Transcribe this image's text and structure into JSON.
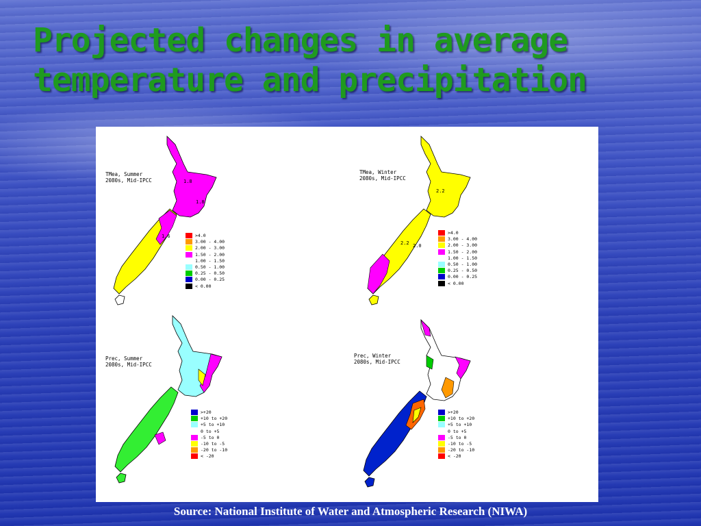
{
  "slide": {
    "title_line1": "Projected changes in average",
    "title_line2": "temperature and precipitation",
    "source": "Source: National Institute of Water and Atmospheric Research (NIWA)"
  },
  "panels": [
    {
      "label_line1": "TMea, Summer",
      "label_line2": "2080s, Mid-IPCC",
      "north_fill": "#ff00ff",
      "south_fill": "#ffffff",
      "legend": [
        {
          "text": ">4.0",
          "color": "#ff0000"
        },
        {
          "text": "3.00 - 4.00",
          "color": "#ff9900"
        },
        {
          "text": "2.00 - 3.00",
          "color": "#ffff00"
        },
        {
          "text": "1.50 - 2.00",
          "color": "#ff00ff"
        },
        {
          "text": "1.00 - 1.50",
          "color": "#ffffff"
        },
        {
          "text": "0.50 - 1.00",
          "color": "#99ffff"
        },
        {
          "text": "0.25 - 0.50",
          "color": "#00cc00"
        },
        {
          "text": "0.00 - 0.25",
          "color": "#0000cc"
        },
        {
          "text": "< 0.00",
          "color": "#000000"
        }
      ]
    },
    {
      "label_line1": "TMea, Winter",
      "label_line2": "2080s, Mid-IPCC",
      "north_fill": "#ffff00",
      "south_fill": "#ffff00",
      "legend": [
        {
          "text": ">4.0",
          "color": "#ff0000"
        },
        {
          "text": "3.00 - 4.00",
          "color": "#ff9900"
        },
        {
          "text": "2.00 - 3.00",
          "color": "#ffff00"
        },
        {
          "text": "1.50 - 2.00",
          "color": "#ff00ff"
        },
        {
          "text": "1.00 - 1.50",
          "color": "#ffffff"
        },
        {
          "text": "0.50 - 1.00",
          "color": "#99ffff"
        },
        {
          "text": "0.25 - 0.50",
          "color": "#00cc00"
        },
        {
          "text": "0.00 - 0.25",
          "color": "#0000cc"
        },
        {
          "text": "< 0.00",
          "color": "#000000"
        }
      ]
    },
    {
      "label_line1": "Prec, Summer",
      "label_line2": "2080s, Mid-IPCC",
      "north_fill": "#99ffff",
      "south_fill": "#33ee33",
      "legend": [
        {
          "text": ">+20",
          "color": "#0000cc"
        },
        {
          "text": "+10 to +20",
          "color": "#00cc00"
        },
        {
          "text": "+5 to +10",
          "color": "#99ffff"
        },
        {
          "text": "0 to +5",
          "color": "#ffffff"
        },
        {
          "text": "-5 to 0",
          "color": "#ff00ff"
        },
        {
          "text": "-10 to -5",
          "color": "#ffff00"
        },
        {
          "text": "-20 to -10",
          "color": "#ff9900"
        },
        {
          "text": "< -20",
          "color": "#ff0000"
        }
      ]
    },
    {
      "label_line1": "Prec, Winter",
      "label_line2": "2080s, Mid-IPCC",
      "north_fill": "#ffffff",
      "south_fill": "#0022cc",
      "legend": [
        {
          "text": ">+20",
          "color": "#0000cc"
        },
        {
          "text": "+10 to +20",
          "color": "#00cc00"
        },
        {
          "text": "+5 to +10",
          "color": "#99ffff"
        },
        {
          "text": "0 to +5",
          "color": "#ffffff"
        },
        {
          "text": "-5 to 0",
          "color": "#ff00ff"
        },
        {
          "text": "-10 to -5",
          "color": "#ffff00"
        },
        {
          "text": "-20 to -10",
          "color": "#ff9900"
        },
        {
          "text": "< -20",
          "color": "#ff0000"
        }
      ]
    }
  ]
}
